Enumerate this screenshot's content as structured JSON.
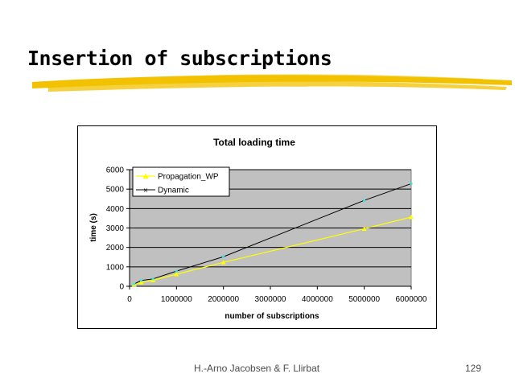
{
  "slide": {
    "title": "Insertion of subscriptions",
    "footer_authors": "H.-Arno Jacobsen & F. Llirbat",
    "page_number": "129"
  },
  "colors": {
    "underline_brush": "#f2c200",
    "plot_background": "#c0c0c0",
    "propagation_line": "#ffff00",
    "propagation_marker": "#ffff00",
    "dynamic_line": "#000000",
    "dynamic_marker": "#40e0e0"
  },
  "chart_data": {
    "type": "line",
    "title": "Total loading time",
    "xlabel": "number of subscriptions",
    "ylabel": "time (s)",
    "xlim": [
      0,
      6000000
    ],
    "ylim": [
      0,
      6000
    ],
    "x_ticks": [
      "0",
      "1000000",
      "2000000",
      "3000000",
      "4000000",
      "5000000",
      "6000000"
    ],
    "y_ticks": [
      "0",
      "1000",
      "2000",
      "3000",
      "4000",
      "5000",
      "6000"
    ],
    "grid": "horizontal",
    "legend_position": "top-left",
    "series": [
      {
        "name": "Propagation_WP",
        "x": [
          100000,
          250000,
          500000,
          1000000,
          2000000,
          5000000,
          6000000
        ],
        "values": [
          90,
          200,
          310,
          620,
          1230,
          2960,
          3560
        ]
      },
      {
        "name": "Dynamic",
        "x": [
          100000,
          250000,
          500000,
          1000000,
          2000000,
          5000000,
          6000000
        ],
        "values": [
          120,
          300,
          380,
          780,
          1520,
          4420,
          5280
        ]
      }
    ]
  }
}
